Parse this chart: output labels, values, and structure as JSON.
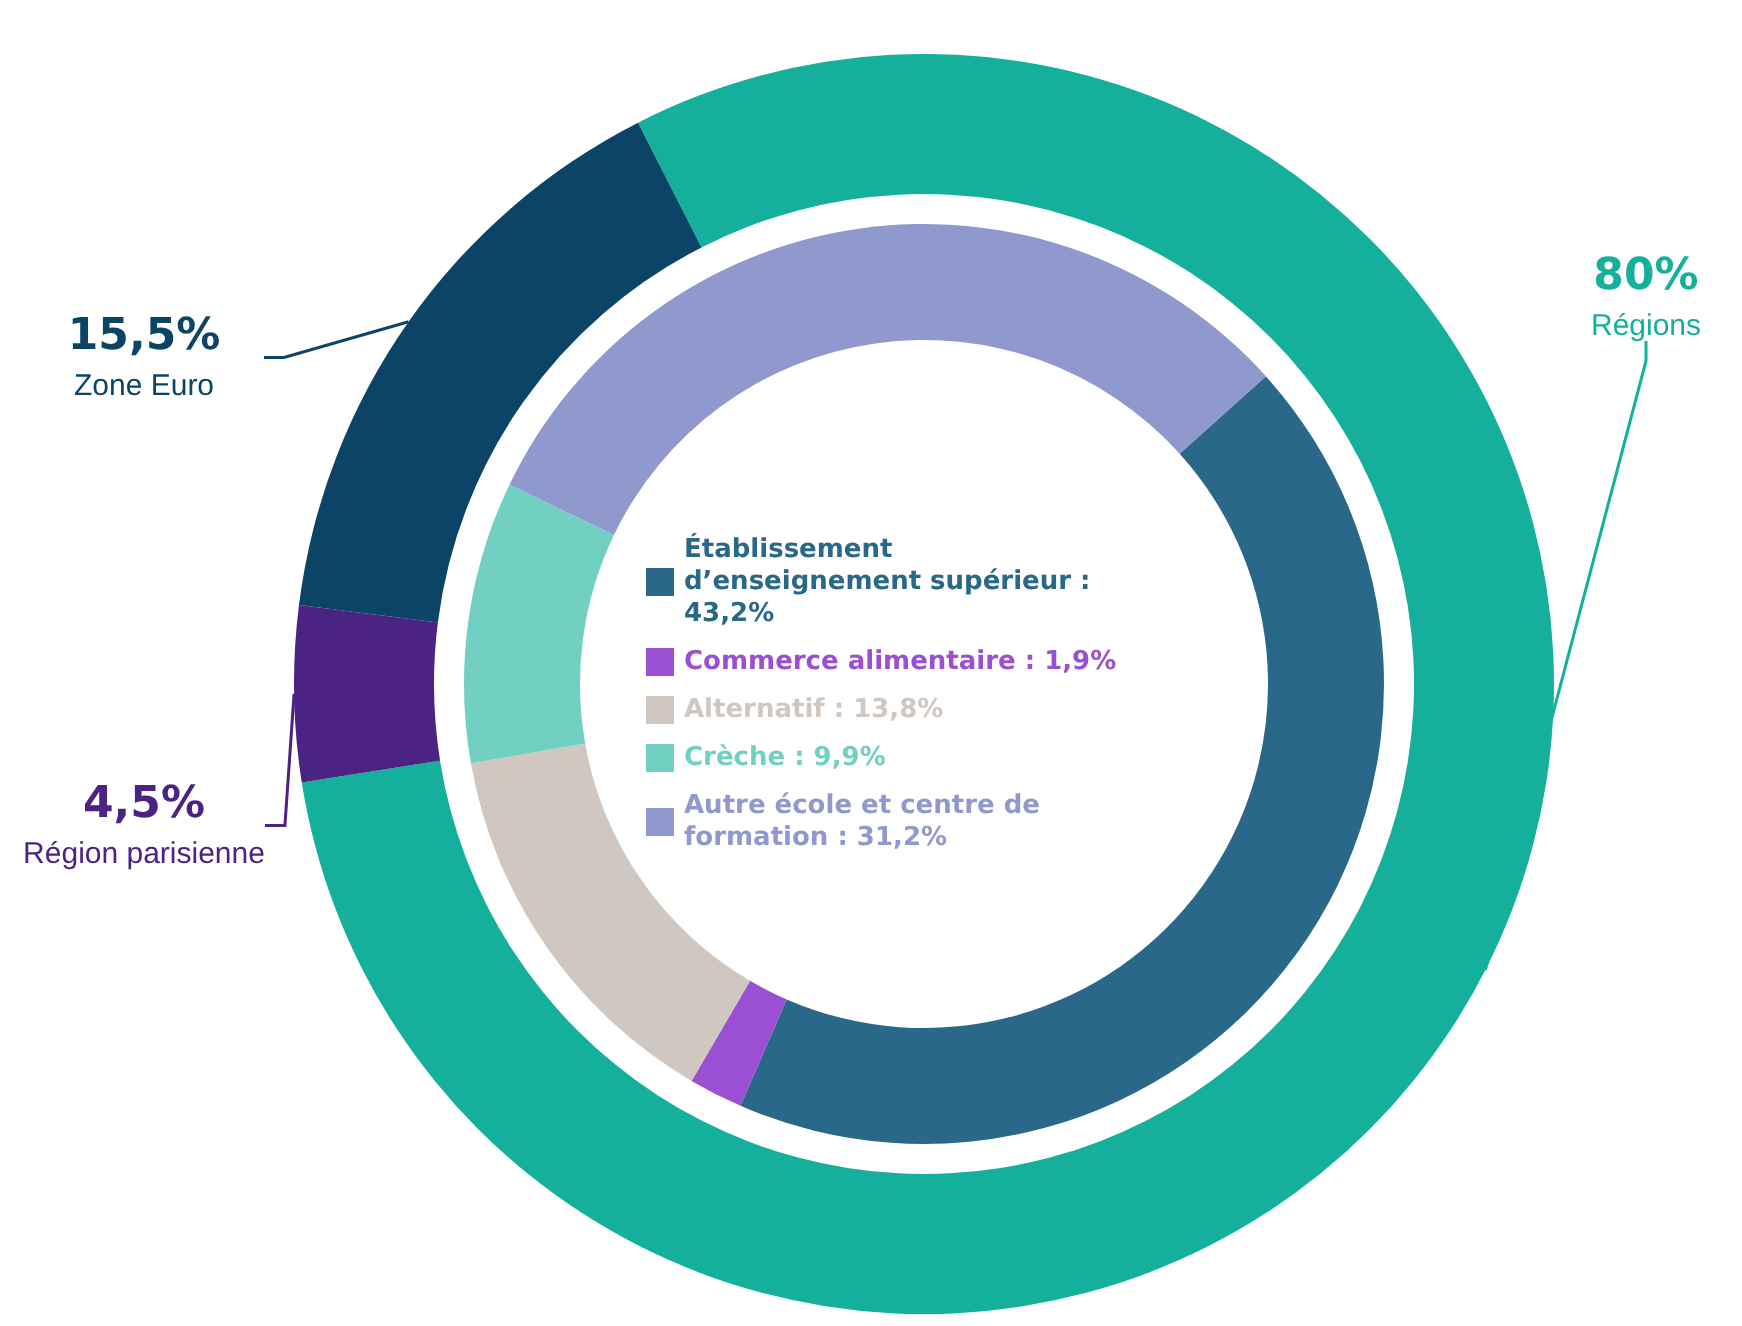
{
  "chart_data": [
    {
      "type": "donut",
      "categories": [
        "Régions",
        "Région parisienne",
        "Zone Euro"
      ],
      "values": [
        80,
        4.5,
        15.5
      ],
      "value_labels": [
        "80%",
        "4,5%",
        "15,5%"
      ],
      "colors": [
        "#14b09b",
        "#4b2383",
        "#0c4467"
      ]
    },
    {
      "type": "donut",
      "categories": [
        "Établissement d’enseignement supérieur : 43,2%",
        "Commerce alimentaire : 1,9%",
        "Alternatif : 13,8%",
        "Crèche : 9,9%",
        "Autre école et centre de formation : 31,2%"
      ],
      "values": [
        43.2,
        1.9,
        13.8,
        9.9,
        31.2
      ],
      "colors": [
        "#2a6889",
        "#9b4fd3",
        "#d0c8c0",
        "#72d0c2",
        "#8f99cd"
      ],
      "legend": "center"
    }
  ]
}
